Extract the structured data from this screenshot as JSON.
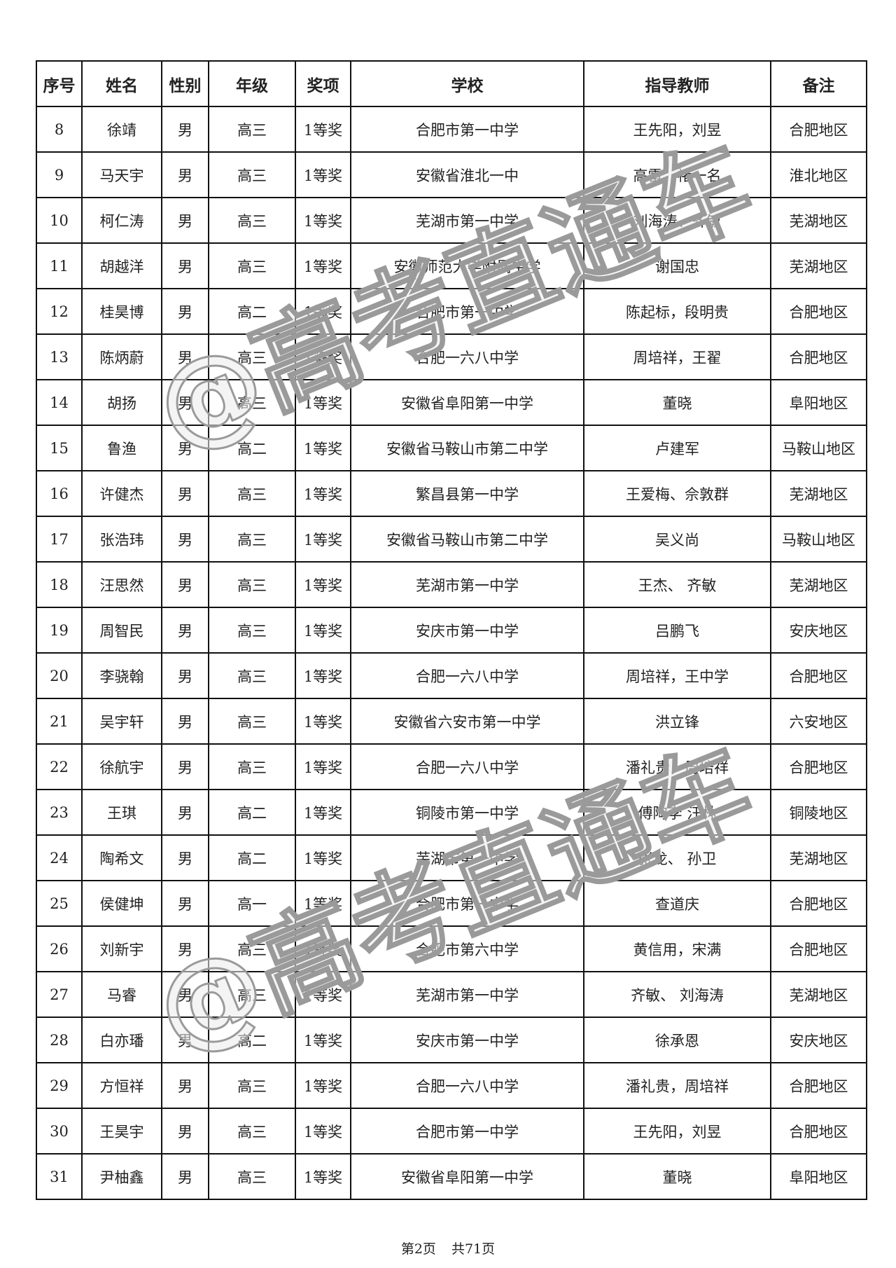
{
  "table": {
    "headers": [
      "序号",
      "姓名",
      "性别",
      "年级",
      "奖项",
      "学校",
      "指导教师",
      "备注"
    ],
    "rows": [
      [
        "8",
        "徐靖",
        "男",
        "高三",
        "1等奖",
        "合肥市第一中学",
        "王先阳，刘昱",
        "合肥地区"
      ],
      [
        "9",
        "马天宇",
        "男",
        "高三",
        "1等奖",
        "安徽省淮北一中",
        "高雷、褚一名",
        "淮北地区"
      ],
      [
        "10",
        "柯仁涛",
        "男",
        "高三",
        "1等奖",
        "芜湖市第一中学",
        "刘海涛、齐敏",
        "芜湖地区"
      ],
      [
        "11",
        "胡越洋",
        "男",
        "高三",
        "1等奖",
        "安徽师范大学附属中学",
        "谢国忠",
        "芜湖地区"
      ],
      [
        "12",
        "桂昊博",
        "男",
        "高二",
        "1等奖",
        "合肥市第一中学",
        "陈起标，段明贵",
        "合肥地区"
      ],
      [
        "13",
        "陈炳蔚",
        "男",
        "高三",
        "1等奖",
        "合肥一六八中学",
        "周培祥，王翟",
        "合肥地区"
      ],
      [
        "14",
        "胡扬",
        "男",
        "高三",
        "1等奖",
        "安徽省阜阳第一中学",
        "董晓",
        "阜阳地区"
      ],
      [
        "15",
        "鲁渔",
        "男",
        "高二",
        "1等奖",
        "安徽省马鞍山市第二中学",
        "卢建军",
        "马鞍山地区"
      ],
      [
        "16",
        "许健杰",
        "男",
        "高三",
        "1等奖",
        "繁昌县第一中学",
        "王爱梅、佘敦群",
        "芜湖地区"
      ],
      [
        "17",
        "张浩玮",
        "男",
        "高三",
        "1等奖",
        "安徽省马鞍山市第二中学",
        "吴义尚",
        "马鞍山地区"
      ],
      [
        "18",
        "汪思然",
        "男",
        "高三",
        "1等奖",
        "芜湖市第一中学",
        "王杰、 齐敏",
        "芜湖地区"
      ],
      [
        "19",
        "周智民",
        "男",
        "高三",
        "1等奖",
        "安庆市第一中学",
        "吕鹏飞",
        "安庆地区"
      ],
      [
        "20",
        "李骁翰",
        "男",
        "高三",
        "1等奖",
        "合肥一六八中学",
        "周培祥，王中学",
        "合肥地区"
      ],
      [
        "21",
        "吴宇轩",
        "男",
        "高三",
        "1等奖",
        "安徽省六安市第一中学",
        "洪立锋",
        "六安地区"
      ],
      [
        "22",
        "徐航宇",
        "男",
        "高三",
        "1等奖",
        "合肥一六八中学",
        "潘礼贵，周培祥",
        "合肥地区"
      ],
      [
        "23",
        "王琪",
        "男",
        "高二",
        "1等奖",
        "铜陵市第一中学",
        "傅陶李 汪林",
        "铜陵地区"
      ],
      [
        "24",
        "陶希文",
        "男",
        "高二",
        "1等奖",
        "芜湖市第一中学",
        "张龙、 孙卫",
        "芜湖地区"
      ],
      [
        "25",
        "侯健坤",
        "男",
        "高一",
        "1等奖",
        "合肥市第一中学",
        "查道庆",
        "合肥地区"
      ],
      [
        "26",
        "刘新宇",
        "男",
        "高三",
        "1等奖",
        "合肥市第六中学",
        "黄信用，宋满",
        "合肥地区"
      ],
      [
        "27",
        "马睿",
        "男",
        "高三",
        "1等奖",
        "芜湖市第一中学",
        "齐敏、 刘海涛",
        "芜湖地区"
      ],
      [
        "28",
        "白亦璠",
        "男",
        "高二",
        "1等奖",
        "安庆市第一中学",
        "徐承恩",
        "安庆地区"
      ],
      [
        "29",
        "方恒祥",
        "男",
        "高三",
        "1等奖",
        "合肥一六八中学",
        "潘礼贵，周培祥",
        "合肥地区"
      ],
      [
        "30",
        "王昊宇",
        "男",
        "高三",
        "1等奖",
        "合肥市第一中学",
        "王先阳，刘昱",
        "合肥地区"
      ],
      [
        "31",
        "尹柚鑫",
        "男",
        "高三",
        "1等奖",
        "安徽省阜阳第一中学",
        "董晓",
        "阜阳地区"
      ]
    ]
  },
  "footer": {
    "page": "第2页",
    "total": "共71页"
  },
  "watermark": "@高考直通车"
}
